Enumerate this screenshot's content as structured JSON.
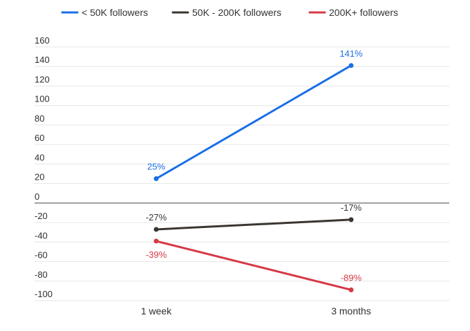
{
  "chart_data": {
    "type": "line",
    "title": "",
    "xlabel": "",
    "ylabel": "",
    "categories": [
      "1 week",
      "3 months"
    ],
    "ylim": [
      -100,
      160
    ],
    "yticks": [
      160,
      140,
      120,
      100,
      80,
      60,
      40,
      20,
      0,
      -20,
      -40,
      -60,
      -80,
      -100
    ],
    "grid": true,
    "legend_position": "top-center",
    "series": [
      {
        "name": "< 50K followers",
        "values": [
          25,
          141
        ],
        "labels": [
          "25%",
          "141%"
        ],
        "color": "#1a6ee6"
      },
      {
        "name": "50K - 200K followers",
        "values": [
          -27,
          -17
        ],
        "labels": [
          "-27%",
          "-17%"
        ],
        "color": "#3a3530"
      },
      {
        "name": "200K+ followers",
        "values": [
          -39,
          -89
        ],
        "labels": [
          "-39%",
          "-89%"
        ],
        "color": "#d63845"
      }
    ]
  }
}
